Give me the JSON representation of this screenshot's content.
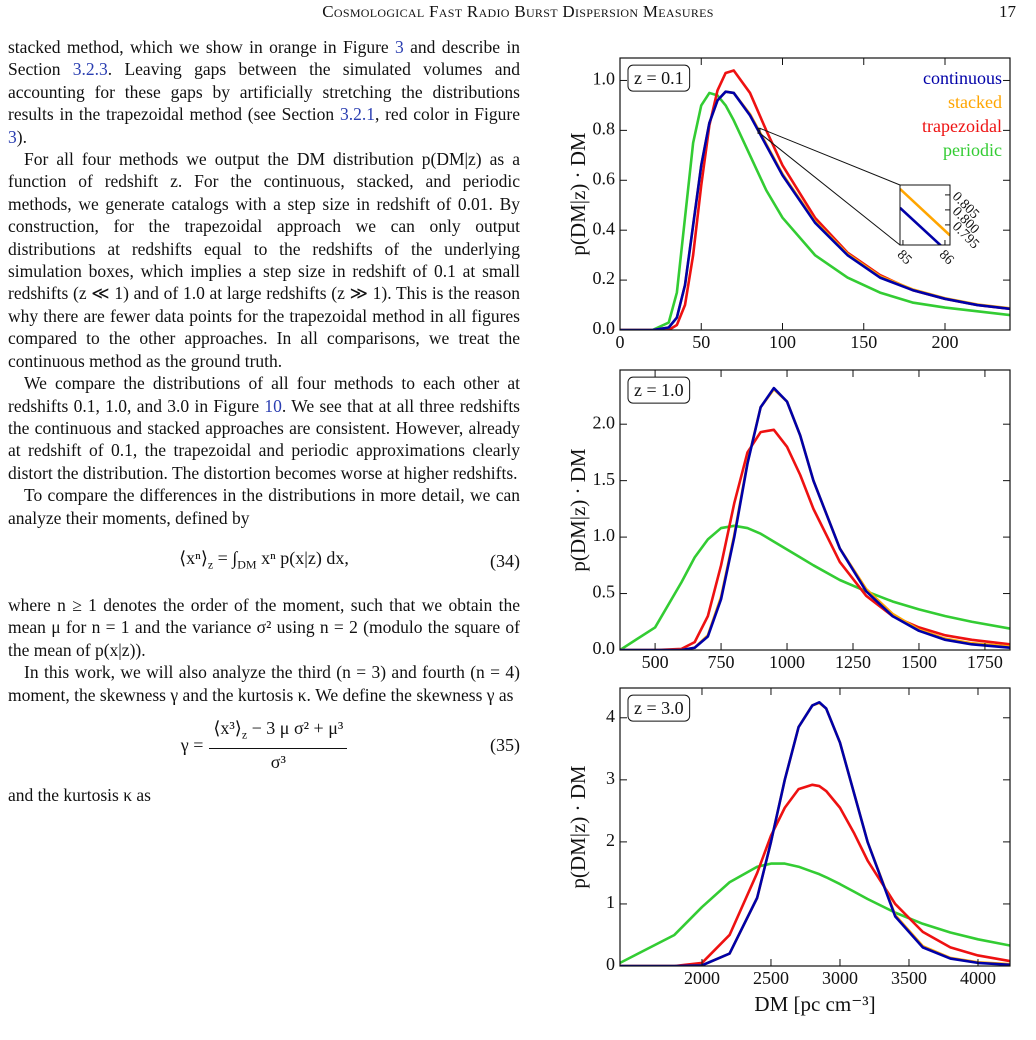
{
  "header": {
    "title": "Cosmological Fast Radio Burst Dispersion Measures",
    "page": "17"
  },
  "paragraphs": [
    [
      "stacked method, which we show in orange in Figure ",
      {
        "ref": "3"
      },
      " and describe in Section ",
      {
        "ref": "3.2.3"
      },
      ". Leaving gaps between the simulated volumes and accounting for these gaps by artificially stretching the distributions results in the trapezoidal method (see Section ",
      {
        "ref": "3.2.1"
      },
      ", red color in Figure ",
      {
        "ref": "3"
      },
      ")."
    ],
    [
      "For all four methods we output the DM distribution p(DM|z) as a function of redshift z. For the continuous, stacked, and periodic methods, we generate catalogs with a step size in redshift of 0.01. By construction, for the trapezoidal approach we can only output distributions at redshifts equal to the redshifts of the underlying simulation boxes, which implies a step size in redshift of 0.1 at small redshifts (z ≪ 1) and of 1.0 at large redshifts (z ≫ 1). This is the reason why there are fewer data points for the trapezoidal method in all figures compared to the other approaches. In all comparisons, we treat the continuous method as the ground truth."
    ],
    [
      "We compare the distributions of all four methods to each other at redshifts 0.1, 1.0, and 3.0 in Figure ",
      {
        "ref": "10"
      },
      ". We see that at all three redshifts the continuous and stacked approaches are consistent. However, already at redshift of 0.1, the trapezoidal and periodic approximations clearly distort the distribution. The distortion becomes worse at higher redshifts."
    ],
    [
      "To compare the differences in the distributions in more detail, we can analyze their moments, defined by"
    ],
    [
      "where n ≥ 1 denotes the order of the moment, such that we obtain the mean μ for n = 1 and the variance σ² using n = 2 (modulo the square of the mean of p(x|z))."
    ],
    [
      "In this work, we will also analyze the third (n = 3) and fourth (n = 4) moment, the skewness γ and the kurtosis κ. We define the skewness γ as"
    ],
    [
      "and the kurtosis κ as"
    ]
  ],
  "equations": [
    {
      "parts": [
        "⟨xⁿ⟩",
        "z",
        " = ∫",
        "DM",
        " xⁿ p(x|z) dx,"
      ],
      "number": "(34)"
    },
    {
      "lhs": "γ =",
      "numerator": [
        "⟨x³⟩",
        "z",
        " − 3 μ σ² + μ³"
      ],
      "denominator": "σ³",
      "number": "(35)"
    }
  ],
  "chart_data": [
    {
      "type": "line",
      "annotation": "z = 0.1",
      "ylabel": "p(DM|z) · DM",
      "legend": "upper right",
      "xlim": [
        0,
        240
      ],
      "ylim": [
        0,
        1.09
      ],
      "xticks": [
        0,
        50,
        100,
        150,
        200
      ],
      "yticks": [
        {
          "value": 0,
          "label": "0.0"
        },
        {
          "value": 0.2,
          "label": "0.2"
        },
        {
          "value": 0.4,
          "label": "0.4"
        },
        {
          "value": 0.6,
          "label": "0.6"
        },
        {
          "value": 0.8,
          "label": "0.8"
        },
        {
          "value": 1,
          "label": "1.0"
        }
      ],
      "x": [
        0,
        20,
        30,
        35,
        40,
        45,
        50,
        55,
        60,
        65,
        70,
        80,
        90,
        100,
        120,
        140,
        160,
        180,
        200,
        220,
        240
      ],
      "series": [
        {
          "name": "continuous",
          "color": "#0000a8",
          "values": [
            0,
            0,
            0.01,
            0.05,
            0.18,
            0.42,
            0.66,
            0.83,
            0.92,
            0.955,
            0.95,
            0.86,
            0.74,
            0.62,
            0.43,
            0.3,
            0.21,
            0.16,
            0.125,
            0.1,
            0.085
          ]
        },
        {
          "name": "stacked",
          "color": "#ffa500",
          "values": [
            0,
            0,
            0.01,
            0.05,
            0.18,
            0.42,
            0.66,
            0.83,
            0.92,
            0.955,
            0.95,
            0.865,
            0.745,
            0.625,
            0.435,
            0.305,
            0.215,
            0.163,
            0.127,
            0.102,
            0.087
          ]
        },
        {
          "name": "trapezoidal",
          "color": "#ee1111",
          "values": [
            0,
            0,
            0,
            0.02,
            0.1,
            0.3,
            0.58,
            0.82,
            0.96,
            1.03,
            1.04,
            0.95,
            0.8,
            0.66,
            0.45,
            0.31,
            0.22,
            0.16,
            0.125,
            0.1,
            0.085
          ]
        },
        {
          "name": "periodic",
          "color": "#33cc33",
          "values": [
            0,
            0,
            0.03,
            0.15,
            0.45,
            0.75,
            0.9,
            0.95,
            0.94,
            0.9,
            0.84,
            0.7,
            0.56,
            0.45,
            0.3,
            0.21,
            0.15,
            0.11,
            0.09,
            0.075,
            0.06
          ]
        }
      ],
      "inset": {
        "xlim": [
          84.93,
          86.12
        ],
        "ylim": [
          0.7883,
          0.8083
        ],
        "xticks": [
          85,
          86
        ],
        "yticks": [
          {
            "value": 0.795,
            "label": "0.795"
          },
          {
            "value": 0.8,
            "label": "0.800"
          },
          {
            "value": 0.805,
            "label": "0.805"
          }
        ],
        "x": [
          84.93,
          86.12
        ],
        "series": [
          {
            "color": "#ffa500",
            "values": [
              0.807,
              0.7915
            ]
          },
          {
            "color": "#0000a8",
            "values": [
              0.8007,
              0.7853
            ]
          }
        ]
      }
    },
    {
      "type": "line",
      "annotation": "z = 1.0",
      "ylabel": "p(DM|z) · DM",
      "xlim": [
        367,
        1845
      ],
      "ylim": [
        0,
        2.48
      ],
      "xticks": [
        500,
        750,
        1000,
        1250,
        1500,
        1750
      ],
      "yticks": [
        {
          "value": 0,
          "label": "0.0"
        },
        {
          "value": 0.5,
          "label": "0.5"
        },
        {
          "value": 1,
          "label": "1.0"
        },
        {
          "value": 1.5,
          "label": "1.5"
        },
        {
          "value": 2,
          "label": "2.0"
        }
      ],
      "x": [
        367,
        500,
        600,
        650,
        700,
        750,
        800,
        850,
        900,
        950,
        1000,
        1050,
        1100,
        1200,
        1300,
        1400,
        1500,
        1600,
        1700,
        1845
      ],
      "series": [
        {
          "color": "#0000a8",
          "values": [
            0,
            0,
            0,
            0.02,
            0.12,
            0.45,
            1.0,
            1.65,
            2.15,
            2.32,
            2.2,
            1.9,
            1.5,
            0.9,
            0.52,
            0.3,
            0.17,
            0.09,
            0.05,
            0.02
          ]
        },
        {
          "color": "#ffa500",
          "values": [
            0,
            0,
            0,
            0.02,
            0.13,
            0.47,
            1.02,
            1.66,
            2.15,
            2.31,
            2.2,
            1.9,
            1.5,
            0.9,
            0.54,
            0.32,
            0.18,
            0.1,
            0.06,
            0.03
          ]
        },
        {
          "color": "#ee1111",
          "values": [
            0,
            0,
            0.01,
            0.07,
            0.3,
            0.75,
            1.3,
            1.75,
            1.93,
            1.95,
            1.8,
            1.55,
            1.25,
            0.78,
            0.48,
            0.3,
            0.2,
            0.13,
            0.09,
            0.05
          ]
        },
        {
          "color": "#33cc33",
          "values": [
            0,
            0.2,
            0.6,
            0.82,
            0.98,
            1.08,
            1.1,
            1.08,
            1.03,
            0.96,
            0.89,
            0.82,
            0.75,
            0.62,
            0.52,
            0.43,
            0.36,
            0.3,
            0.25,
            0.19
          ]
        }
      ]
    },
    {
      "type": "line",
      "annotation": "z = 3.0",
      "ylabel": "p(DM|z) · DM",
      "xlabel": "DM [pc cm⁻³]",
      "xlim": [
        1406,
        4232
      ],
      "ylim": [
        0,
        4.48
      ],
      "xticks": [
        2000,
        2500,
        3000,
        3500,
        4000
      ],
      "yticks": [
        0,
        1,
        2,
        3,
        4
      ],
      "x": [
        1406,
        1800,
        2000,
        2200,
        2400,
        2500,
        2600,
        2700,
        2800,
        2850,
        2900,
        3000,
        3100,
        3200,
        3400,
        3600,
        3800,
        4000,
        4232
      ],
      "series": [
        {
          "color": "#0000a8",
          "values": [
            0,
            0,
            0.01,
            0.2,
            1.1,
            2.0,
            3.0,
            3.85,
            4.2,
            4.25,
            4.15,
            3.6,
            2.8,
            2.0,
            0.8,
            0.3,
            0.12,
            0.05,
            0.02
          ]
        },
        {
          "color": "#ffa500",
          "values": [
            0,
            0,
            0.01,
            0.2,
            1.1,
            2.0,
            3.0,
            3.85,
            4.2,
            4.24,
            4.15,
            3.6,
            2.8,
            2.0,
            0.82,
            0.32,
            0.13,
            0.06,
            0.03
          ]
        },
        {
          "color": "#ee1111",
          "values": [
            0,
            0,
            0.05,
            0.5,
            1.5,
            2.1,
            2.55,
            2.85,
            2.92,
            2.9,
            2.82,
            2.55,
            2.15,
            1.7,
            1.0,
            0.55,
            0.3,
            0.17,
            0.08
          ]
        },
        {
          "color": "#33cc33",
          "values": [
            0.05,
            0.5,
            0.95,
            1.35,
            1.6,
            1.65,
            1.65,
            1.6,
            1.52,
            1.48,
            1.43,
            1.32,
            1.2,
            1.08,
            0.86,
            0.68,
            0.54,
            0.43,
            0.33
          ]
        }
      ]
    }
  ]
}
